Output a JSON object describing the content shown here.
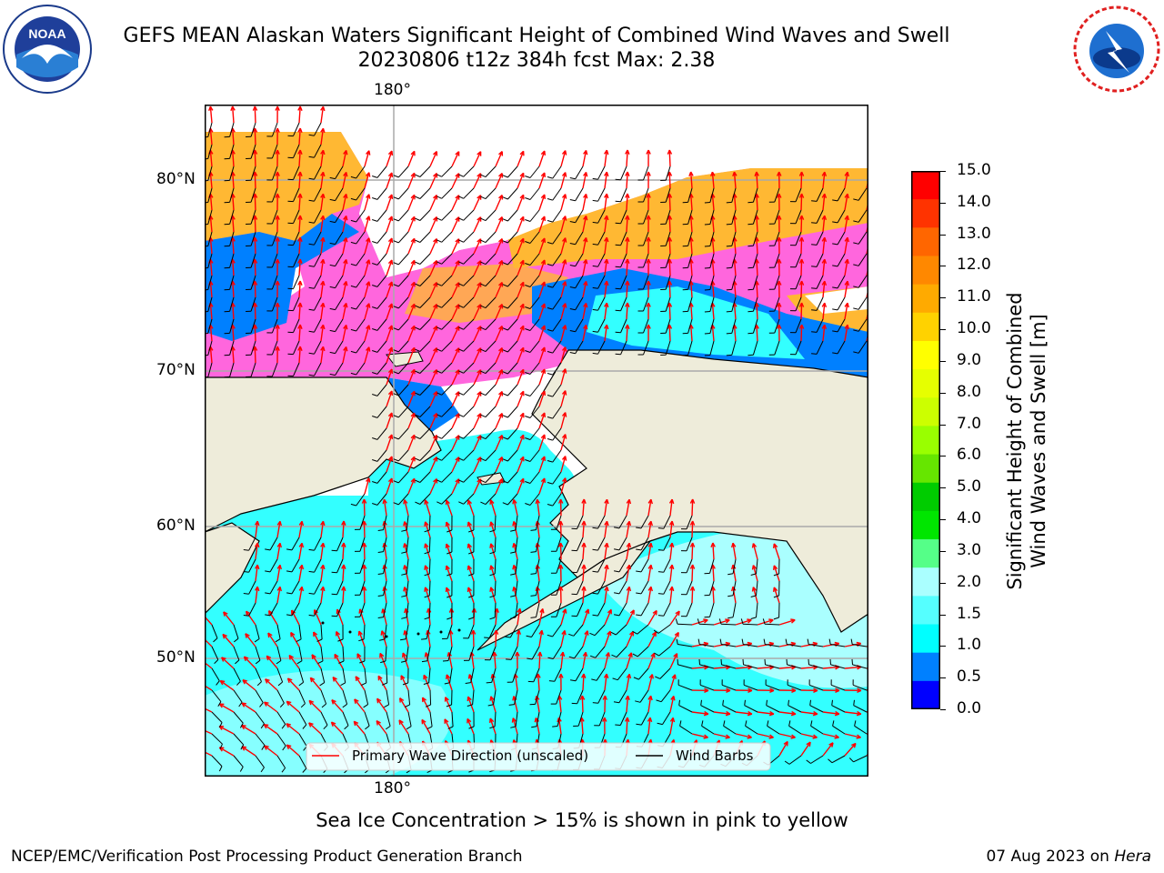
{
  "header": {
    "title_line1": "GEFS MEAN Alaskan Waters Significant Height of Combined Wind Waves and Swell",
    "title_line2": "20230806 t12z 384h fcst   Max: 2.38"
  },
  "logos": {
    "left": {
      "name": "noaa-logo",
      "text": "NOAA",
      "ring_text": "NATIONAL OCEANIC AND ATMOSPHERIC ADMINISTRATION • U.S. DEPARTMENT OF COMMERCE"
    },
    "right": {
      "name": "nws-logo",
      "ring_text": "NATIONAL WEATHER SERVICE"
    }
  },
  "map": {
    "lon_labels": {
      "top": "180°",
      "bottom": "180°"
    },
    "lat_labels": [
      "80°N",
      "70°N",
      "60°N",
      "50°N"
    ],
    "colors": {
      "land": "#eeecda",
      "ocean_main": "#33ffff",
      "ocean_calm": "#aaffff",
      "ocean_low": "#0080ff",
      "ice_pink": "#ff66dd",
      "ice_orange": "#ffb833",
      "wave_arrow": "#ff0000",
      "wind_barb": "#000000"
    }
  },
  "legend": {
    "wave_label": "Primary Wave Direction (unscaled)",
    "wind_label": "Wind Barbs"
  },
  "colorbar": {
    "label_line1": "Significant Height of Combined",
    "label_line2": "Wind Waves and Swell [m]",
    "ticks": [
      "15.0",
      "14.0",
      "13.0",
      "12.0",
      "11.0",
      "10.0",
      "9.0",
      "8.0",
      "7.0",
      "6.0",
      "5.0",
      "4.0",
      "3.0",
      "2.0",
      "1.5",
      "1.0",
      "0.5",
      "0.0"
    ],
    "colors": [
      "#ff0000",
      "#ff3300",
      "#ff6600",
      "#ff8800",
      "#ffaa00",
      "#ffd200",
      "#ffff00",
      "#e6ff00",
      "#ccff00",
      "#99ff00",
      "#66e600",
      "#00cc00",
      "#00e600",
      "#55ff88",
      "#aaffff",
      "#55ffff",
      "#00ffff",
      "#0080ff",
      "#0000ff"
    ]
  },
  "caption": "Sea Ice Concentration > 15% is shown in pink to yellow",
  "footer": {
    "left": "NCEP/EMC/Verification Post Processing Product Generation Branch",
    "right_date": "07 Aug 2023 on ",
    "right_machine": "Hera"
  }
}
